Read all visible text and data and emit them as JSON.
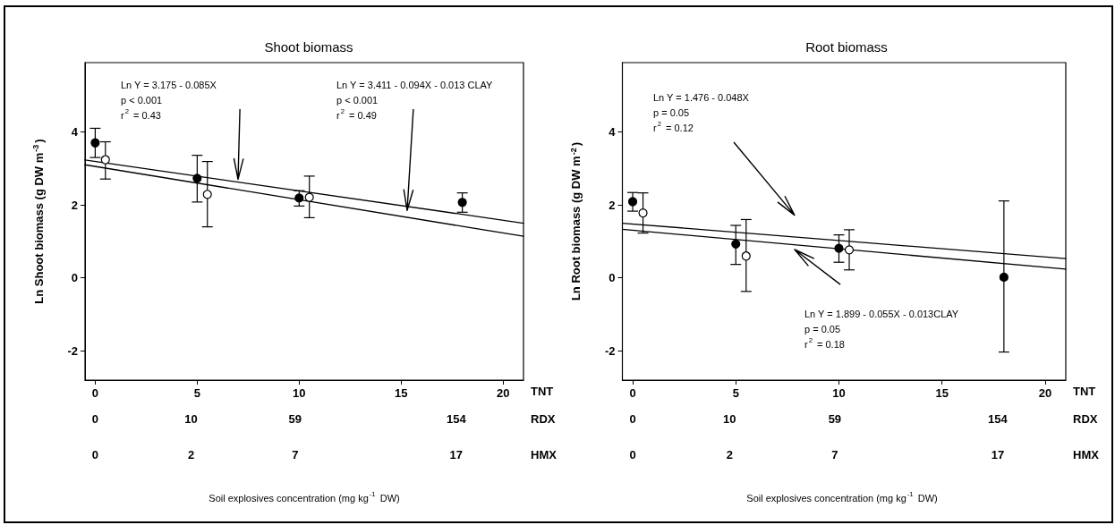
{
  "chart_data": [
    {
      "type": "scatter",
      "title": "Shoot biomass",
      "xlabel": "TNT",
      "ylabel": "Ln Shoot biomass (g DW m$^{-3}$)",
      "xlim": [
        -0.5,
        21
      ],
      "xticks": [
        0,
        5,
        10,
        15,
        20
      ],
      "ylim": [
        -2.8,
        5.9
      ],
      "yticks": [
        -2,
        0,
        2,
        4
      ],
      "marker": "circle",
      "series": [
        {
          "color": "#000000",
          "x": [
            0,
            5,
            10,
            18
          ],
          "values": [
            3.7,
            2.73,
            2.19,
            2.07
          ],
          "errors": [
            [
              3.3,
              4.1
            ],
            [
              2.08,
              3.36
            ],
            [
              1.97,
              2.39
            ],
            [
              1.8,
              2.33
            ]
          ]
        },
        {
          "color": "#ffffff",
          "x": [
            0.5,
            5.5,
            10.5
          ],
          "values": [
            3.24,
            2.29,
            2.21
          ],
          "errors": [
            [
              2.71,
              3.73
            ],
            [
              1.4,
              3.19
            ],
            [
              1.65,
              2.79
            ]
          ]
        },
        {
          "type": "line",
          "color": "#000000",
          "marker": "none",
          "x": [
            -0.5,
            21
          ],
          "values": [
            3.23,
            1.5
          ]
        },
        {
          "type": "line",
          "color": "#000000",
          "marker": "none",
          "x": [
            -0.5,
            21
          ],
          "values": [
            3.1,
            1.14
          ]
        }
      ],
      "annotations": [
        "Ln Y = 3.175 - 0.085X\np < 0.001\nr$^{2}$ = 0.43",
        "Ln Y = 3.411 - 0.094X - 0.013 CLAY\np < 0.001\nr$^{2}$ = 0.49",
        "RDX",
        "0",
        "10",
        "59",
        "154",
        "HMX",
        "0",
        "2",
        "7",
        "17",
        "Soil explosives concentration (mg kg$^{-1}$ DW)"
      ]
    },
    {
      "type": "scatter",
      "title": "Root biomass",
      "xlabel": "TNT",
      "ylabel": "Ln Root biomass (g DW m$^{-2}$)",
      "xlim": [
        -0.5,
        21
      ],
      "xticks": [
        0,
        5,
        10,
        15,
        20
      ],
      "ylim": [
        -2.8,
        5.9
      ],
      "yticks": [
        -2,
        0,
        2,
        4
      ],
      "marker": "circle",
      "series": [
        {
          "color": "#000000",
          "x": [
            0,
            5,
            10,
            18
          ],
          "values": [
            2.09,
            0.93,
            0.81,
            0.02
          ],
          "errors": [
            [
              1.83,
              2.34
            ],
            [
              0.37,
              1.44
            ],
            [
              0.43,
              1.18
            ],
            [
              -2.03,
              2.11
            ]
          ]
        },
        {
          "color": "#ffffff",
          "x": [
            0.5,
            5.5,
            10.5
          ],
          "values": [
            1.78,
            0.6,
            0.77
          ],
          "errors": [
            [
              1.23,
              2.33
            ],
            [
              -0.37,
              1.6
            ],
            [
              0.22,
              1.32
            ]
          ]
        },
        {
          "type": "line",
          "color": "#000000",
          "marker": "none",
          "x": [
            -0.5,
            21
          ],
          "values": [
            1.5,
            0.53
          ]
        },
        {
          "type": "line",
          "color": "#000000",
          "marker": "none",
          "x": [
            -0.5,
            21
          ],
          "values": [
            1.33,
            0.24
          ]
        }
      ],
      "annotations": [
        "Ln Y = 1.476 - 0.048X\np = 0.05\nr$^{2}$ = 0.12",
        "Ln Y = 1.899 - 0.055X - 0.013CLAY\np = 0.05\nr$^{2}$ = 0.18",
        "RDX",
        "0",
        "10",
        "59",
        "154",
        "HMX",
        "0",
        "2",
        "7",
        "17",
        "Soil explosives concentration (mg kg$^{-1}$ DW)"
      ]
    }
  ]
}
